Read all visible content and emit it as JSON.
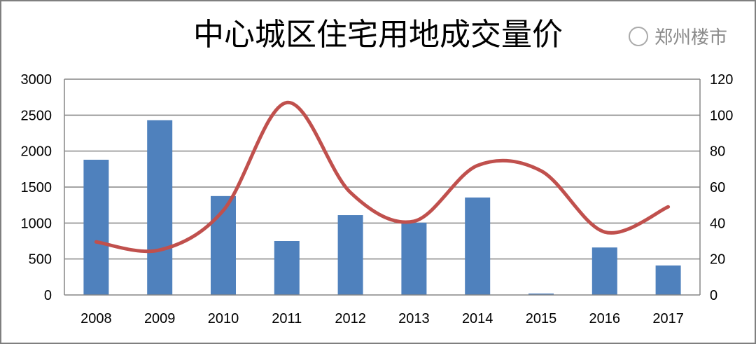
{
  "chart_data": {
    "type": "bar",
    "title": "中心城区住宅用地成交量价",
    "categories": [
      "2008",
      "2009",
      "2010",
      "2011",
      "2012",
      "2013",
      "2014",
      "2015",
      "2016",
      "2017"
    ],
    "series": [
      {
        "type": "bar",
        "axis": "left",
        "color": "#4f81bd",
        "values": [
          1880,
          2430,
          1375,
          750,
          1110,
          1005,
          1355,
          20,
          660,
          410
        ]
      },
      {
        "type": "line",
        "axis": "right",
        "smooth": true,
        "color": "#c0504d",
        "values": [
          29.5,
          25,
          47,
          107,
          57,
          41,
          72,
          69,
          35,
          49
        ]
      }
    ],
    "y_left": {
      "min": 0,
      "max": 3000,
      "ticks": [
        "0",
        "500",
        "1000",
        "1500",
        "2000",
        "2500",
        "3000"
      ]
    },
    "y_right": {
      "min": 0,
      "max": 120,
      "ticks": [
        "0",
        "20",
        "40",
        "60",
        "80",
        "100",
        "120"
      ]
    },
    "grid": true,
    "legend": "none"
  },
  "watermark": "郑州楼市"
}
